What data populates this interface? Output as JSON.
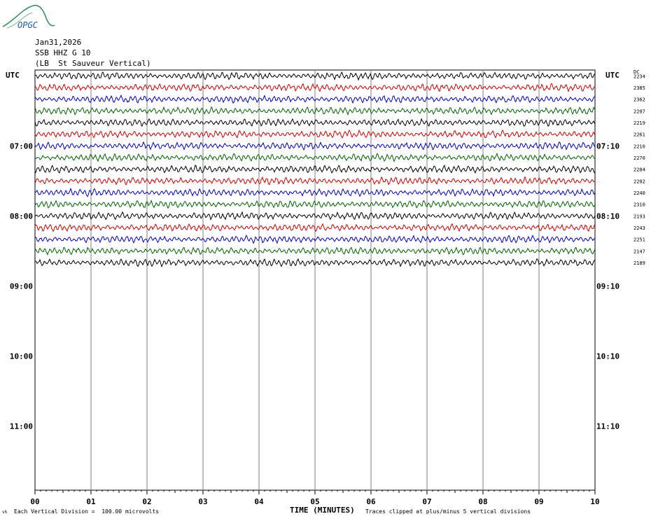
{
  "header": {
    "logo_text": "OPGC",
    "date": "Jan31,2026",
    "station": "SSB HHZ G 10",
    "location": "(LB  St Sauveur Vertical)"
  },
  "footer": {
    "scale_note": "Each Vertical Division =  100.00 microvolts",
    "xlabel": "TIME (MINUTES)",
    "clip_note": "Traces clipped at plus/minus 5 vertical divisions",
    "corner_mark": "vh"
  },
  "chart_data": {
    "type": "line",
    "title": "SSB HHZ G 10",
    "xlabel": "TIME (MINUTES)",
    "xlim": [
      0,
      10
    ],
    "x_ticks": [
      "00",
      "01",
      "02",
      "03",
      "04",
      "05",
      "06",
      "07",
      "08",
      "09",
      "10"
    ],
    "left_axis_label": "UTC",
    "right_axis_label": "UTC",
    "left_hours": [
      "07:00",
      "08:00",
      "09:00",
      "10:00",
      "11:00"
    ],
    "right_hours": [
      "07:10",
      "08:10",
      "09:10",
      "10:10",
      "11:10"
    ],
    "dc_label": "DC",
    "trace_interval_minutes": 10,
    "rows_total": 36,
    "grid": true,
    "trace_colors": [
      "#000000",
      "#d40000",
      "#0000c8",
      "#006400"
    ],
    "traces": [
      {
        "dc": "2234"
      },
      {
        "dc": "2385"
      },
      {
        "dc": "2362"
      },
      {
        "dc": "2207"
      },
      {
        "dc": "2219"
      },
      {
        "dc": "2261"
      },
      {
        "dc": "2210"
      },
      {
        "dc": "2270"
      },
      {
        "dc": "2284"
      },
      {
        "dc": "2202"
      },
      {
        "dc": "2240"
      },
      {
        "dc": "2310"
      },
      {
        "dc": "2193"
      },
      {
        "dc": "2243"
      },
      {
        "dc": "2251"
      },
      {
        "dc": "2147"
      },
      {
        "dc": "2189"
      }
    ]
  }
}
